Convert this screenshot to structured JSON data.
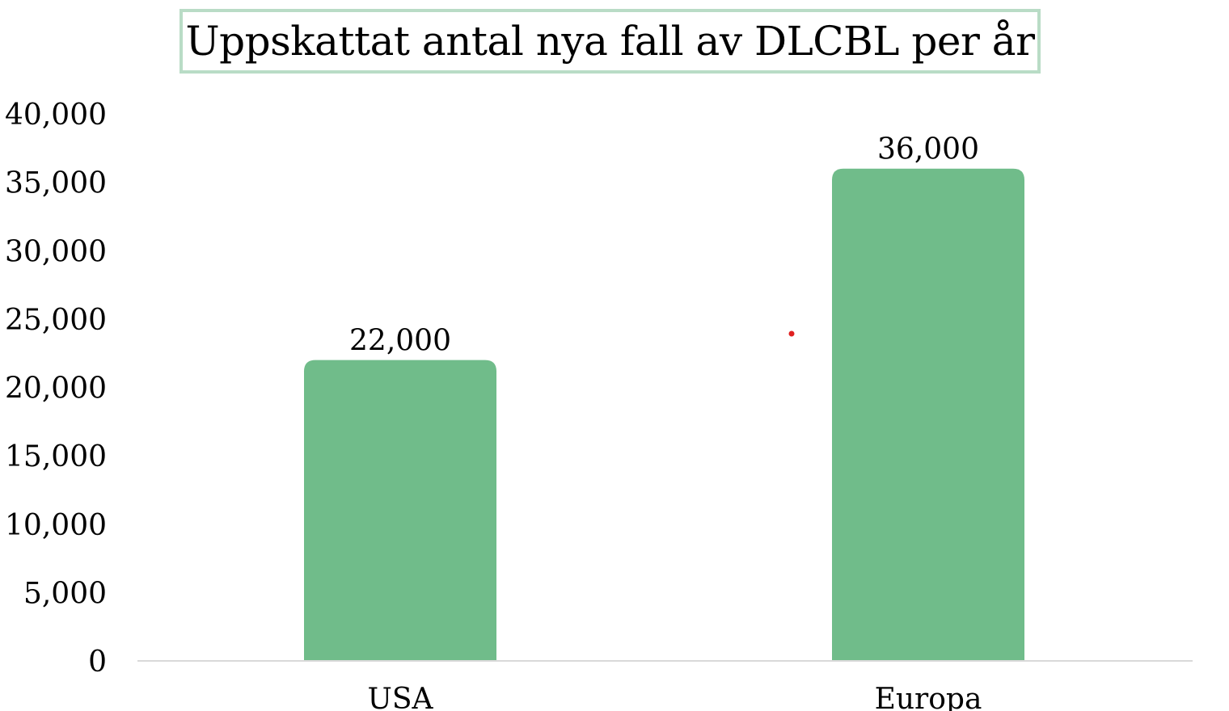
{
  "chart_data": {
    "type": "bar",
    "title": "Uppskattat antal nya fall av DLCBL per år",
    "categories": [
      "USA",
      "Europa"
    ],
    "values": [
      22000,
      36000
    ],
    "data_labels": [
      "22,000",
      "36,000"
    ],
    "y_ticks": [
      0,
      5000,
      10000,
      15000,
      20000,
      25000,
      30000,
      35000,
      40000
    ],
    "y_tick_labels": [
      "0",
      "5,000",
      "10,000",
      "15,000",
      "20,000",
      "25,000",
      "30,000",
      "35,000",
      "40,000"
    ],
    "ylim": [
      0,
      40000
    ],
    "xlabel": "",
    "ylabel": "",
    "grid": false,
    "bar_color": "#70bc8a",
    "title_border_color": "#b9dcc6",
    "axis_color": "#d9d9d9"
  }
}
